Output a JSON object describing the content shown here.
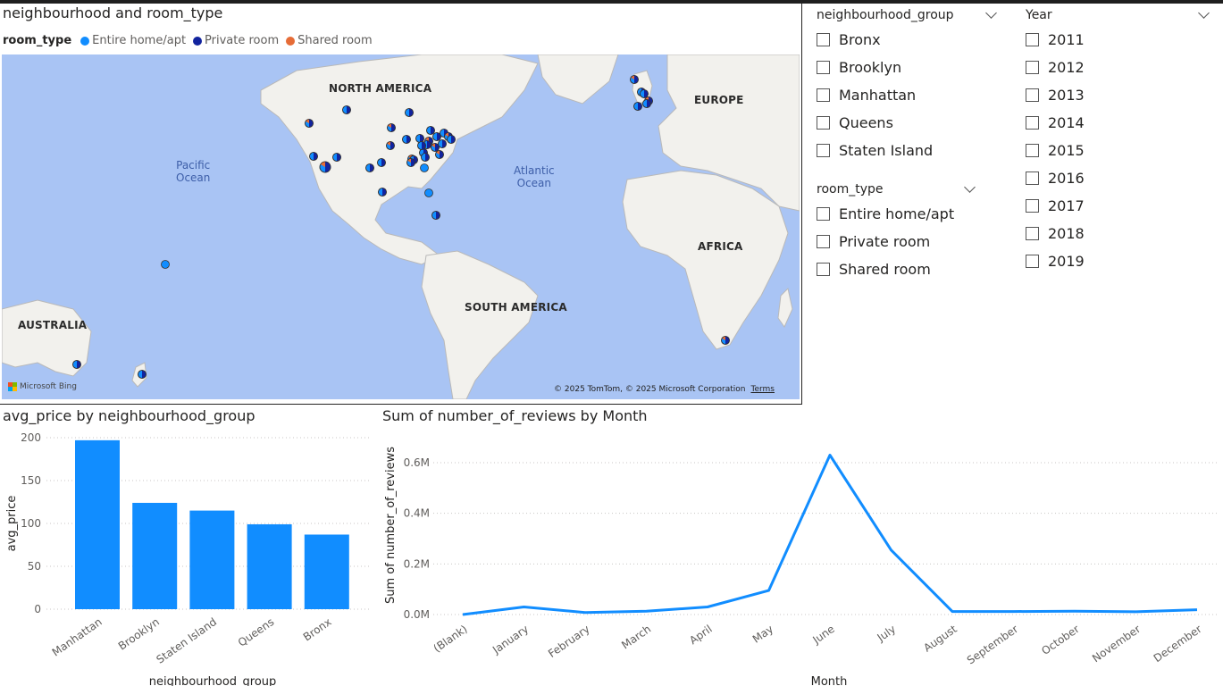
{
  "map": {
    "title": "neighbourhood and room_type",
    "legend_title": "room_type",
    "legend": [
      {
        "label": "Entire home/apt",
        "color": "#118dff"
      },
      {
        "label": "Private room",
        "color": "#12239e"
      },
      {
        "label": "Shared room",
        "color": "#e66c37"
      }
    ],
    "continents": {
      "north_america": "NORTH AMERICA",
      "europe": "EUROPE",
      "africa": "AFRICA",
      "south_america": "SOUTH AMERICA",
      "australia": "AUSTRALIA"
    },
    "oceans": {
      "pacific": "Pacific\nOcean",
      "atlantic": "Atlantic\nOcean"
    },
    "provider": "Microsoft Bing",
    "copyright": "© 2025 TomTom, © 2025 Microsoft Corporation",
    "terms": "Terms",
    "colors": {
      "ocean": "#a9c4f4",
      "land": "#f2f1ed",
      "border": "#b9b9b9"
    }
  },
  "slicers": {
    "neighbourhood_group": {
      "title": "neighbourhood_group",
      "items": [
        "Bronx",
        "Brooklyn",
        "Manhattan",
        "Queens",
        "Staten Island"
      ]
    },
    "room_type": {
      "title": "room_type",
      "items": [
        "Entire home/apt",
        "Private room",
        "Shared room"
      ]
    },
    "year": {
      "title": "Year",
      "items": [
        "2011",
        "2012",
        "2013",
        "2014",
        "2015",
        "2016",
        "2017",
        "2018",
        "2019"
      ]
    }
  },
  "chart_data": [
    {
      "type": "bar",
      "title": "avg_price by neighbourhood_group",
      "xlabel": "neighbourhood_group",
      "ylabel": "avg_price",
      "categories": [
        "Manhattan",
        "Brooklyn",
        "Staten Island",
        "Queens",
        "Bronx"
      ],
      "values": [
        197,
        124,
        115,
        99,
        87
      ],
      "ylim": [
        0,
        200
      ],
      "yticks": [
        0,
        50,
        100,
        150,
        200
      ],
      "ytick_labels": [
        "0",
        "50",
        "100",
        "150",
        "200"
      ],
      "grid": true,
      "color": "#118dff"
    },
    {
      "type": "line",
      "title": "Sum of number_of_reviews by Month",
      "xlabel": "Month",
      "ylabel": "Sum of number_of_reviews",
      "categories": [
        "(Blank)",
        "January",
        "February",
        "March",
        "April",
        "May",
        "June",
        "July",
        "August",
        "September",
        "October",
        "November",
        "December"
      ],
      "values": [
        0,
        30000,
        8000,
        13000,
        30000,
        95000,
        630000,
        255000,
        12000,
        12000,
        13000,
        11000,
        19000
      ],
      "ylim": [
        0,
        700000
      ],
      "yticks": [
        0,
        200000,
        400000,
        600000
      ],
      "ytick_labels": [
        "0.0M",
        "0.2M",
        "0.4M",
        "0.6M"
      ],
      "grid": true,
      "color": "#118dff"
    }
  ]
}
